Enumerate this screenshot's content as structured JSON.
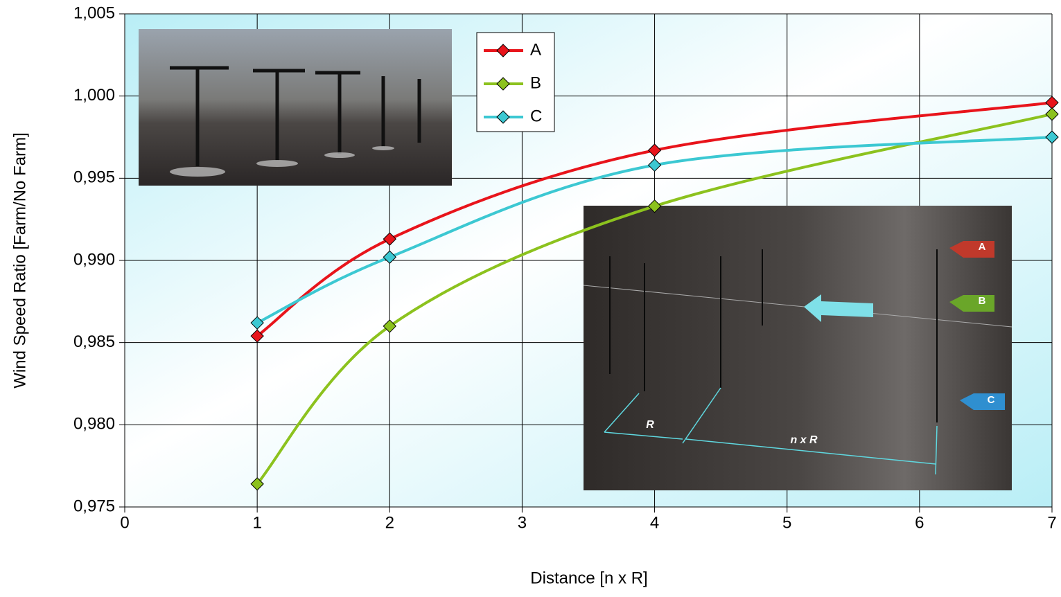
{
  "chart_data": {
    "type": "line",
    "x_label": "Distance  [n x R]",
    "y_label": "Wind Speed Ratio [Farm/No Farm]",
    "x": [
      1,
      2,
      4,
      7
    ],
    "series": [
      {
        "name": "A",
        "color": "#e8141b",
        "values": [
          0.9854,
          0.9913,
          0.9967,
          0.9996
        ]
      },
      {
        "name": "B",
        "color": "#8cc21e",
        "values": [
          0.9764,
          0.986,
          0.9933,
          0.9989
        ]
      },
      {
        "name": "C",
        "color": "#3cc8d2",
        "values": [
          0.9862,
          0.9902,
          0.9958,
          0.9975
        ]
      }
    ],
    "xlim": [
      0,
      7
    ],
    "xticks": [
      0,
      1,
      2,
      3,
      4,
      5,
      6,
      7
    ],
    "ylim": [
      0.975,
      1.005
    ],
    "yticks": [
      {
        "value": 0.975,
        "label": "0,975"
      },
      {
        "value": 0.98,
        "label": "0,980"
      },
      {
        "value": 0.985,
        "label": "0,985"
      },
      {
        "value": 0.99,
        "label": "0,990"
      },
      {
        "value": 0.995,
        "label": "0,995"
      },
      {
        "value": 1.0,
        "label": "1,000"
      },
      {
        "value": 1.005,
        "label": "1,005"
      }
    ],
    "grid": true,
    "legend": "top-center"
  },
  "inset_labels": {
    "tags": [
      "A",
      "B",
      "C"
    ],
    "dimensions": [
      "R",
      "n x R"
    ]
  }
}
